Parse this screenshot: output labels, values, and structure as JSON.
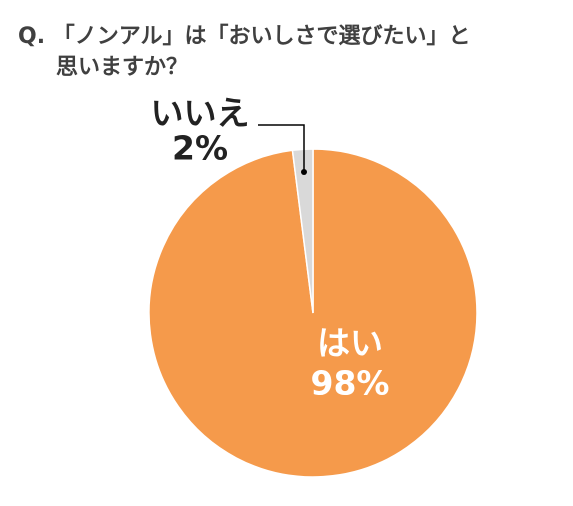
{
  "chart_data": {
    "type": "pie",
    "title": [
      "Q. 「ノンアル」は「おいしさで選びたい」と",
      "思いますか？"
    ],
    "categories": [
      "はい",
      "いいえ"
    ],
    "values": [
      98,
      2
    ],
    "value_labels": [
      "98%",
      "2%"
    ],
    "colors": [
      "#f59a4b",
      "#d9d9d9"
    ]
  }
}
